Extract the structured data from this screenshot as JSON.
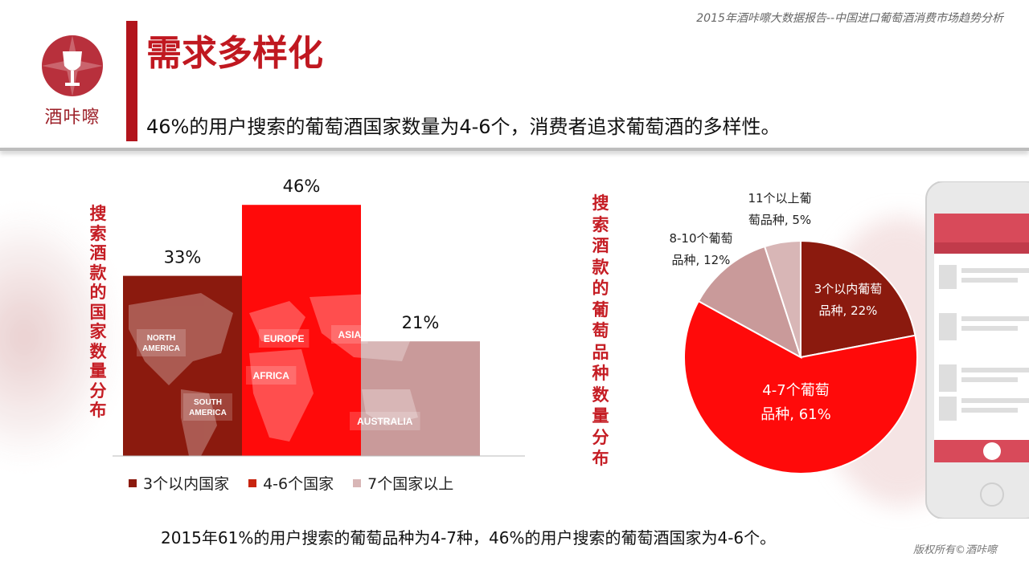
{
  "header": {
    "report_subtitle": "2015年酒咔嚓大数据报告--中国进口葡萄酒消费市场趋势分析",
    "logo_text": "酒咔嚓",
    "page_title": "需求多样化",
    "headline": "46%的用户搜索的葡萄酒国家数量为4-6个，消费者追求葡萄酒的多样性。"
  },
  "colors": {
    "dark_red": "#8b1a0e",
    "red": "#ff0a0a",
    "pink": "#c99a9a",
    "light_pink": "#d8b6b6",
    "accent": "#c51d24"
  },
  "chart_data": [
    {
      "type": "bar",
      "title": "搜索酒款的国家数量分布",
      "categories": [
        "3个以内国家",
        "4-6个国家",
        "7个国家以上"
      ],
      "values": [
        33,
        46,
        21
      ],
      "value_labels": [
        "33%",
        "46%",
        "21%"
      ],
      "ylim": [
        0,
        50
      ],
      "legend": "bottom",
      "map_labels": [
        "NORTH AMERICA",
        "SOUTH AMERICA",
        "EUROPE",
        "AFRICA",
        "ASIA",
        "AUSTRALIA"
      ]
    },
    {
      "type": "pie",
      "title": "搜索酒款的葡萄品种数量分布",
      "slices": [
        {
          "label_line1": "3个以内葡萄",
          "label_line2": "品种, 22%",
          "value": 22
        },
        {
          "label_line1": "4-7个葡萄",
          "label_line2": "品种, 61%",
          "value": 61
        },
        {
          "label_line1": "8-10个葡萄",
          "label_line2": "品种, 12%",
          "value": 12
        },
        {
          "label_line1": "11个以上葡",
          "label_line2": "萄品种, 5%",
          "value": 5
        }
      ]
    }
  ],
  "footer": {
    "note": "2015年61%的用户搜索的葡萄品种为4-7种，46%的用户搜索的葡萄酒国家为4-6个。",
    "copyright": "版权所有©酒咔嚓"
  }
}
